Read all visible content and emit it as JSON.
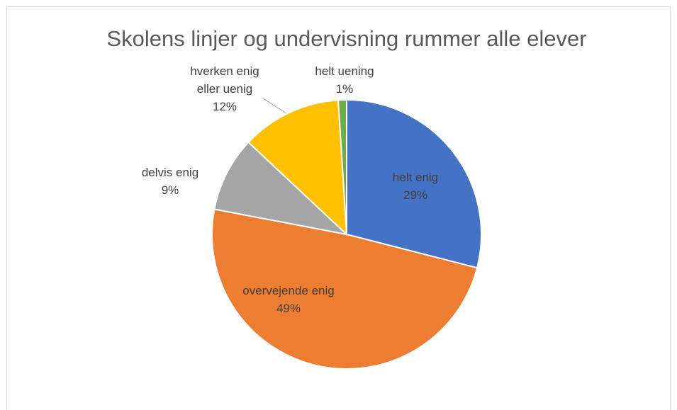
{
  "chart_data": {
    "type": "pie",
    "title": "Skolens linjer og undervisning rummer alle elever",
    "categories": [
      "helt enig",
      "overvejende enig",
      "delvis enig",
      "hverken enig eller uenig",
      "helt uening"
    ],
    "values": [
      29,
      49,
      9,
      12,
      1
    ],
    "value_labels": [
      "29%",
      "49%",
      "9%",
      "12%",
      "1%"
    ],
    "colors": [
      "#4472c4",
      "#ed7d31",
      "#a5a5a5",
      "#ffc000",
      "#70ad47"
    ]
  }
}
